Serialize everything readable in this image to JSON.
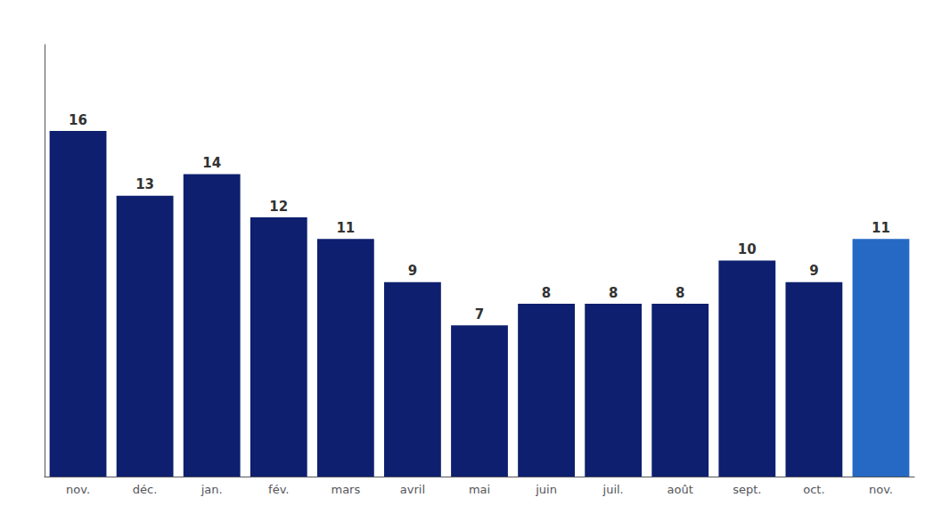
{
  "chart_data": {
    "type": "bar",
    "categories": [
      "nov.",
      "déc.",
      "jan.",
      "fév.",
      "mars",
      "avril",
      "mai",
      "juin",
      "juil.",
      "août",
      "sept.",
      "oct.",
      "nov."
    ],
    "values": [
      16,
      13,
      14,
      12,
      11,
      9,
      7,
      8,
      8,
      8,
      10,
      9,
      11
    ],
    "colors": [
      "#0d1f6e",
      "#0d1f6e",
      "#0d1f6e",
      "#0d1f6e",
      "#0d1f6e",
      "#0d1f6e",
      "#0d1f6e",
      "#0d1f6e",
      "#0d1f6e",
      "#0d1f6e",
      "#0d1f6e",
      "#0d1f6e",
      "#2669c4"
    ],
    "ylim": [
      0,
      20
    ],
    "grid": false,
    "data_labels": true,
    "tick_labels": "x"
  }
}
